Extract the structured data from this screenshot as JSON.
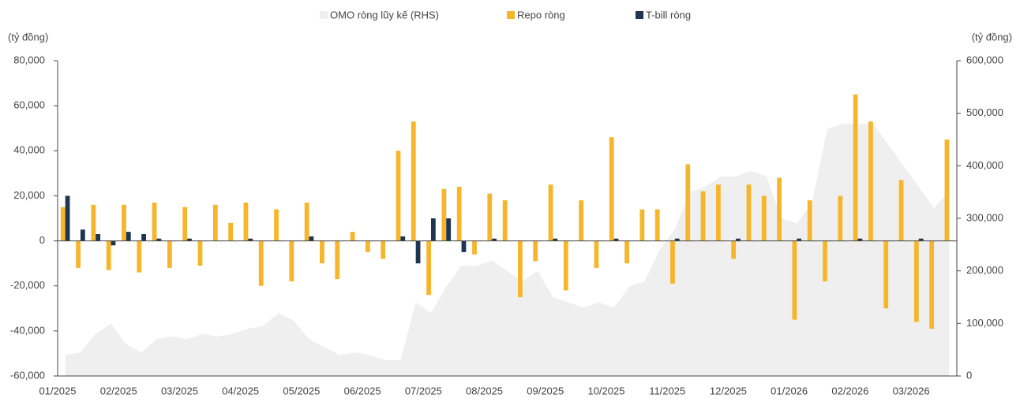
{
  "chart_data": {
    "type": "bar-area",
    "ylabel": "(tỷ đồng)",
    "y2label": "(tỷ đồng)",
    "categories": [
      "01/2025",
      null,
      null,
      null,
      "02/2025",
      null,
      null,
      null,
      "03/2025",
      null,
      null,
      null,
      "04/2025",
      null,
      null,
      null,
      "05/2025",
      null,
      null,
      null,
      "06/2025",
      null,
      null,
      null,
      "07/2025",
      null,
      null,
      null,
      "08/2025",
      null,
      null,
      null,
      "09/2025",
      null,
      null,
      null,
      "10/2025",
      null,
      null,
      null,
      "11/2025",
      null,
      null,
      null,
      "12/2025",
      null,
      null,
      null,
      "01/2026",
      null,
      null,
      null,
      "02/2026",
      null,
      null,
      null,
      "03/2026",
      null,
      null
    ],
    "series": [
      {
        "name": "OMO ròng lũy kế (RHS)",
        "color": "#efefef",
        "axis": "y2",
        "kind": "area",
        "values": [
          40000,
          45000,
          80000,
          100000,
          60000,
          45000,
          70000,
          75000,
          70000,
          80000,
          75000,
          80000,
          90000,
          95000,
          120000,
          105000,
          70000,
          55000,
          40000,
          45000,
          40000,
          30000,
          30000,
          140000,
          120000,
          170000,
          210000,
          210000,
          220000,
          200000,
          180000,
          200000,
          150000,
          140000,
          130000,
          140000,
          130000,
          170000,
          180000,
          240000,
          280000,
          350000,
          360000,
          380000,
          380000,
          390000,
          380000,
          300000,
          290000,
          330000,
          470000,
          480000,
          480000,
          480000,
          440000,
          400000,
          360000,
          320000,
          350000
        ]
      },
      {
        "name": "Repo ròng",
        "color": "#f7b52c",
        "kind": "bar",
        "values": [
          15000,
          -12000,
          16000,
          -13000,
          16000,
          -14000,
          17000,
          -12000,
          15000,
          -11000,
          16000,
          8000,
          17000,
          -20000,
          14000,
          -18000,
          17000,
          -10000,
          -17000,
          4000,
          -5000,
          -8000,
          40000,
          53000,
          -24000,
          23000,
          24000,
          -6000,
          21000,
          18000,
          -25000,
          -9000,
          25000,
          -22000,
          18000,
          -12000,
          46000,
          -10000,
          14000,
          14000,
          -19000,
          34000,
          22000,
          25000,
          -8000,
          25000,
          20000,
          28000,
          -35000,
          18000,
          -18000,
          20000,
          65000,
          53000,
          -30000,
          27000,
          -36000,
          -39000,
          45000
        ]
      },
      {
        "name": "T-bill ròng",
        "color": "#1f3550",
        "kind": "bar",
        "values": [
          20000,
          5000,
          3000,
          -2000,
          4000,
          3000,
          1000,
          0,
          1000,
          0,
          0,
          0,
          1000,
          0,
          0,
          0,
          2000,
          0,
          0,
          0,
          0,
          0,
          2000,
          -10000,
          10000,
          10000,
          -5000,
          0,
          1000,
          0,
          0,
          0,
          1000,
          0,
          0,
          0,
          1000,
          0,
          0,
          0,
          1000,
          0,
          0,
          0,
          1000,
          0,
          0,
          0,
          1000,
          0,
          0,
          0,
          1000,
          0,
          0,
          0,
          1000,
          0,
          0
        ]
      }
    ],
    "ylim": [
      -60000,
      80000
    ],
    "yticks": [
      {
        "value": -60000,
        "label": "-60,000"
      },
      {
        "value": -40000,
        "label": "-40,000"
      },
      {
        "value": -20000,
        "label": "-20,000"
      },
      0,
      {
        "value": 20000,
        "label": "20,000"
      },
      {
        "value": 40000,
        "label": "40,000"
      },
      {
        "value": 60000,
        "label": "60,000"
      },
      {
        "value": 80000,
        "label": "80,000"
      }
    ],
    "y2lim": [
      0,
      600000
    ],
    "y2ticks": [
      0,
      {
        "value": 100000,
        "label": "100,000"
      },
      {
        "value": 200000,
        "label": "200,000"
      },
      {
        "value": 300000,
        "label": "300,000"
      },
      {
        "value": 400000,
        "label": "400,000"
      },
      {
        "value": 500000,
        "label": "500,000"
      },
      {
        "value": 600000,
        "label": "600,000"
      }
    ],
    "grid": false
  }
}
